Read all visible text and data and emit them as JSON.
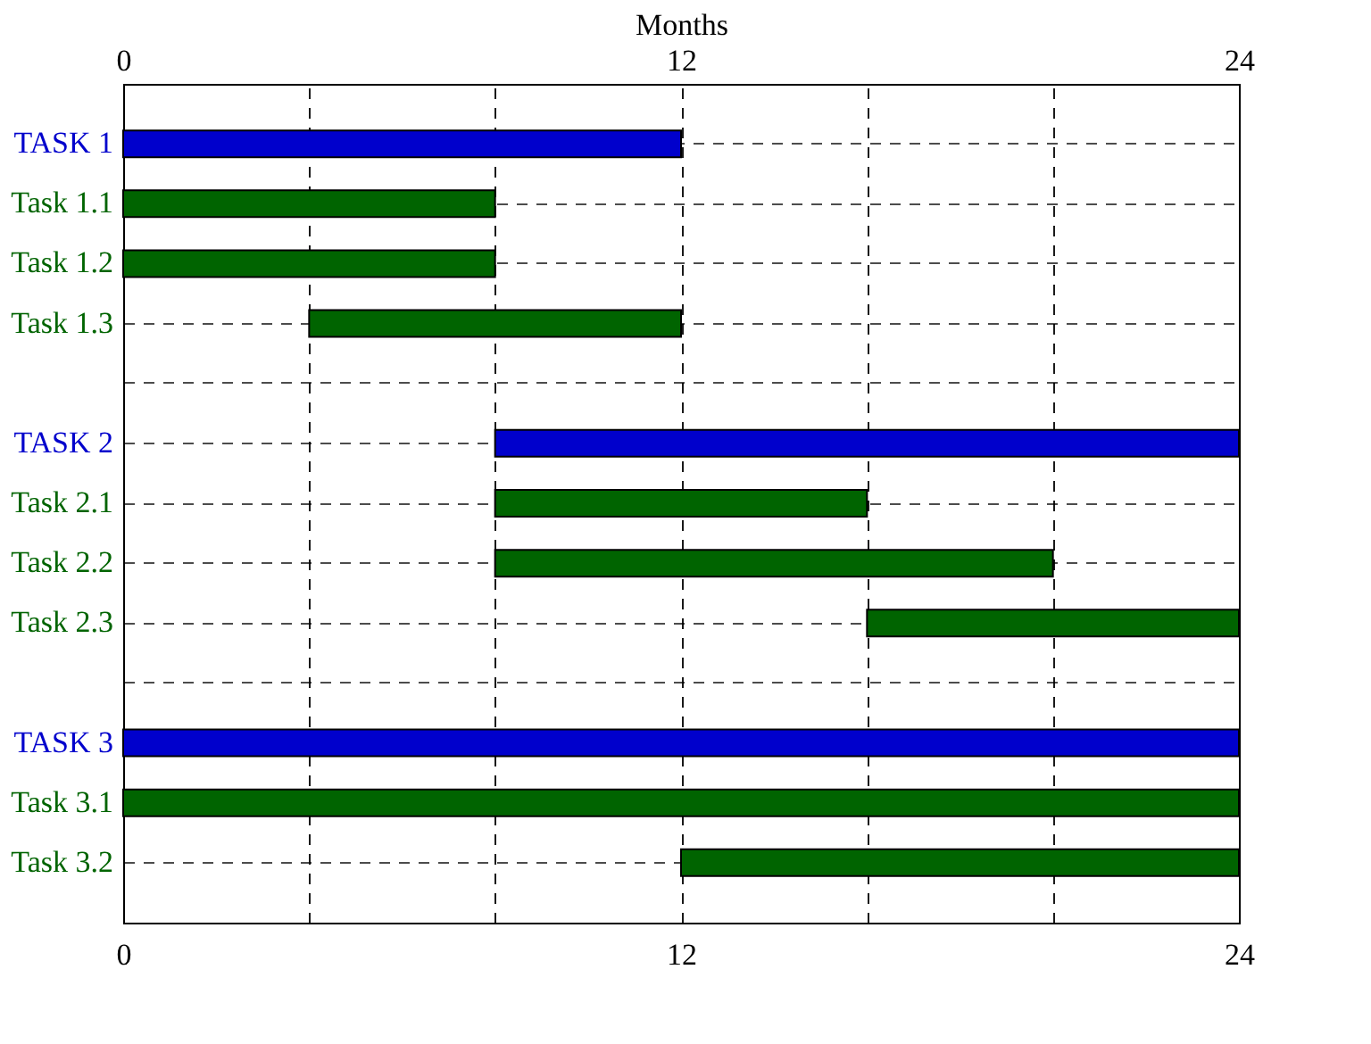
{
  "chart_data": {
    "type": "bar",
    "orientation": "horizontal",
    "categories": [
      "TASK 1",
      "Task 1.1",
      "Task 1.2",
      "Task 1.3",
      null,
      "TASK 2",
      "Task 2.1",
      "Task 2.2",
      "Task 2.3",
      null,
      "TASK 3",
      "Task 3.1",
      "Task 3.2"
    ],
    "base": [
      0,
      0,
      0,
      4,
      null,
      8,
      8,
      8,
      16,
      null,
      0,
      0,
      12
    ],
    "values": [
      12,
      8,
      8,
      8,
      null,
      16,
      8,
      12,
      8,
      null,
      24,
      24,
      12
    ],
    "colors": [
      "#0000cc",
      "#006400",
      "#006400",
      "#006400",
      null,
      "#0000cc",
      "#006400",
      "#006400",
      "#006400",
      null,
      "#0000cc",
      "#006400",
      "#006400"
    ],
    "xlim": [
      0,
      24
    ],
    "xticks": [
      0,
      {
        "value": 4,
        "label": null
      },
      {
        "value": 8,
        "label": null
      },
      12,
      {
        "value": 16,
        "label": null
      },
      {
        "value": 20,
        "label": null
      },
      24
    ],
    "x2lim": [
      0,
      24
    ],
    "x2ticks": [
      0,
      12,
      24
    ],
    "x2label": "Months",
    "grid": true
  }
}
